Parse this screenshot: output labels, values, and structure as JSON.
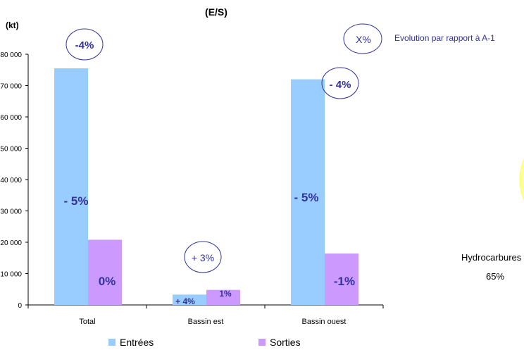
{
  "chart_data": {
    "type": "bar",
    "title": "(E/S)",
    "ylabel": "(kt)",
    "categories": [
      "Total",
      "Bassin est",
      "Bassin ouest"
    ],
    "series": [
      {
        "name": "Entrées",
        "values": [
          75500,
          3300,
          72000
        ]
      },
      {
        "name": "Sorties",
        "values": [
          20800,
          4800,
          16400
        ]
      }
    ],
    "ylim": [
      0,
      80000
    ],
    "yticks": [
      "0",
      "10 000",
      "20 000",
      "30 000",
      "40 000",
      "50 000",
      "60 000",
      "70 000",
      "80 000"
    ],
    "grid": false,
    "legend_position": "bottom",
    "colors": {
      "entrees": "#99ccff",
      "sorties": "#cc99ff",
      "annotation": "#333399",
      "pie_slice": "#ffff99"
    },
    "annotations": {
      "total_change": "-4%",
      "bassin_est_change": "+ 3%",
      "bassin_ouest_change": "- 4%",
      "bar_labels": [
        [
          "- 5%",
          "0%"
        ],
        [
          "+ 4%",
          "1%"
        ],
        [
          "- 5%",
          "-1%"
        ]
      ]
    },
    "note": {
      "symbol": "X%",
      "text": "Evolution par rapport à A-1"
    },
    "pie_label": {
      "name": "Hydrocarbures",
      "value": "65%"
    }
  }
}
